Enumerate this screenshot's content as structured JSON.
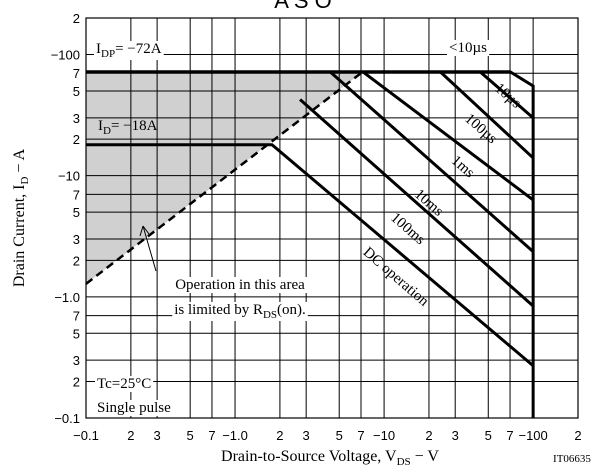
{
  "chart_data": {
    "type": "line",
    "title": "A S O",
    "code": "IT06635",
    "x_label": {
      "parts": [
        "Drain-to-Source Voltage,  V",
        "DS",
        "  −  V"
      ]
    },
    "y_label": {
      "parts": [
        "Drain Current,  I",
        "D",
        "  −  A"
      ]
    },
    "xscale": "log",
    "yscale": "log",
    "grid": true,
    "color": "#000000",
    "shade_color": "#d0d0d0",
    "xlim": [
      0.1,
      200
    ],
    "ylim": [
      0.1,
      200
    ],
    "xticks": [
      {
        "value": 0.1,
        "label": "−0.1"
      },
      {
        "value": 0.2,
        "label": "2"
      },
      {
        "value": 0.3,
        "label": "3"
      },
      {
        "value": 0.5,
        "label": "5"
      },
      {
        "value": 0.7,
        "label": "7"
      },
      {
        "value": 1,
        "label": "−1.0"
      },
      2,
      3,
      5,
      7,
      {
        "value": 10,
        "label": "−10"
      },
      {
        "value": 20,
        "label": "2"
      },
      {
        "value": 30,
        "label": "3"
      },
      {
        "value": 50,
        "label": "5"
      },
      {
        "value": 70,
        "label": "7"
      },
      {
        "value": 100,
        "label": "−100"
      },
      {
        "value": 200,
        "label": "2"
      }
    ],
    "yticks": [
      {
        "value": 0.1,
        "label": "−0.1"
      },
      {
        "value": 0.2,
        "label": "2"
      },
      {
        "value": 0.3,
        "label": "3"
      },
      {
        "value": 0.5,
        "label": "5"
      },
      {
        "value": 0.7,
        "label": "7"
      },
      {
        "value": 1,
        "label": "−1.0"
      },
      2,
      3,
      5,
      7,
      {
        "value": 10,
        "label": "−10"
      },
      {
        "value": 20,
        "label": "2"
      },
      {
        "value": 30,
        "label": "3"
      },
      {
        "value": 50,
        "label": "5"
      },
      {
        "value": 70,
        "label": "7"
      },
      {
        "value": 100,
        "label": "−100"
      },
      {
        "value": 200,
        "label": "2"
      }
    ],
    "series": [
      {
        "name": "<10µs",
        "x": [
          0.1,
          70,
          100,
          100
        ],
        "values": [
          72,
          72,
          55,
          0.1
        ]
      },
      {
        "name": "DC operation",
        "x": [
          0.1,
          1.77,
          100
        ],
        "values": [
          18,
          18,
          0.27
        ]
      },
      {
        "name": "100ms",
        "x": [
          2.73,
          100
        ],
        "values": [
          42.5,
          0.84
        ]
      },
      {
        "name": "10ms",
        "x": [
          4.34,
          100
        ],
        "values": [
          72,
          2.36
        ]
      },
      {
        "name": "1ms",
        "x": [
          7.2,
          100
        ],
        "values": [
          72,
          6.3
        ]
      },
      {
        "name": "100µs",
        "x": [
          23.8,
          100
        ],
        "values": [
          72,
          14
        ]
      },
      {
        "name": "10µs",
        "x": [
          44,
          100
        ],
        "values": [
          72,
          30
        ]
      }
    ],
    "limit_line": {
      "x": [
        0.1,
        7.2
      ],
      "values": [
        1.28,
        72
      ]
    },
    "annotations": {
      "idp": {
        "parts": [
          "I",
          "DP",
          "= −72A"
        ]
      },
      "id": {
        "parts": [
          "I",
          "D",
          "= −18A"
        ]
      },
      "area": {
        "line1": "Operation in this area",
        "line2": [
          "is limited by R",
          "DS",
          "(on)."
        ]
      },
      "cond": {
        "line1": "Tc=25°C",
        "line2": "Single pulse"
      }
    }
  }
}
